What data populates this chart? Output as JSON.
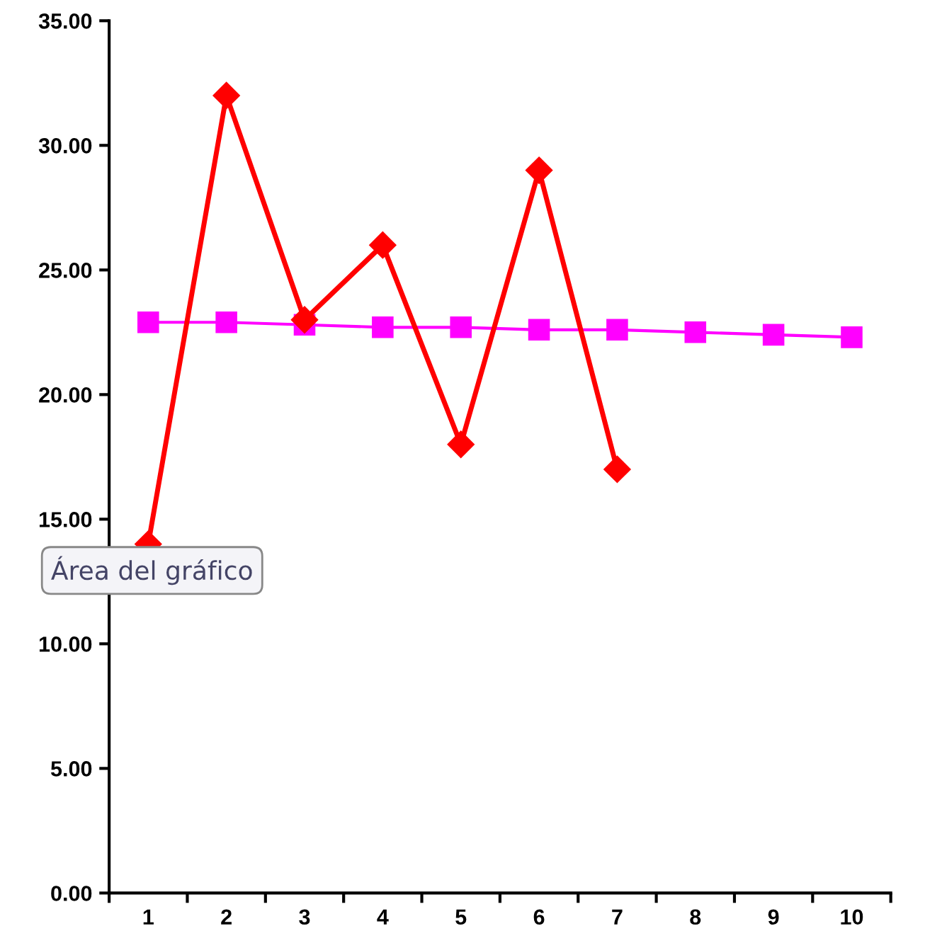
{
  "chart_data": {
    "type": "line",
    "categories": [
      "1",
      "2",
      "3",
      "4",
      "5",
      "6",
      "7",
      "8",
      "9",
      "10"
    ],
    "series": [
      {
        "color": "#ff0000",
        "marker": "diamond",
        "values": [
          14,
          32,
          23,
          26,
          18,
          29,
          17,
          null,
          null,
          null
        ]
      },
      {
        "color": "#ff00ff",
        "marker": "square",
        "values": [
          22.9,
          22.9,
          22.8,
          22.7,
          22.7,
          22.6,
          22.6,
          22.5,
          22.4,
          22.3
        ]
      }
    ],
    "ylim": [
      0,
      35
    ],
    "yticks": [
      {
        "value": 0,
        "label": "0.00"
      },
      {
        "value": 5,
        "label": "5.00"
      },
      {
        "value": 10,
        "label": "10.00"
      },
      {
        "value": 15,
        "label": "15.00"
      },
      {
        "value": 20,
        "label": "20.00"
      },
      {
        "value": 25,
        "label": "25.00"
      },
      {
        "value": 30,
        "label": "30.00"
      },
      {
        "value": 35,
        "label": "35.00"
      }
    ],
    "grid": false,
    "legend": false,
    "annotations": [
      "Área del gráfico"
    ]
  }
}
